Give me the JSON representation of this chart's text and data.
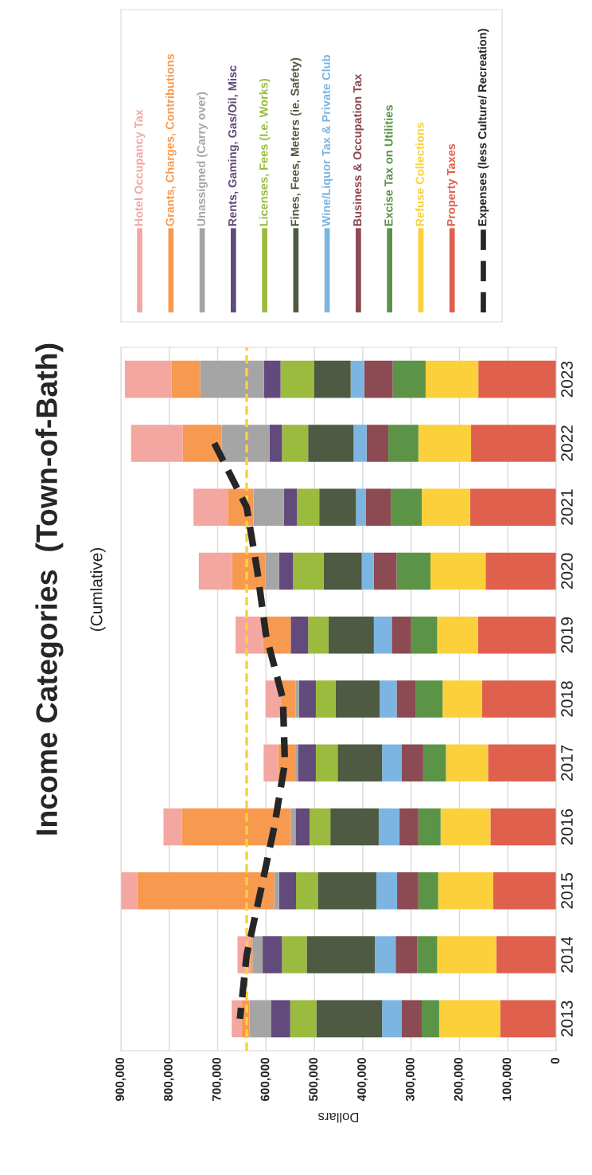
{
  "chart_data": {
    "type": "bar",
    "title": "Income Categories  (Town-of-Bath)",
    "subtitle": "(Cumlative)",
    "xlabel": "Dollars",
    "orientation": "horizontal",
    "stacked": true,
    "legend": "top",
    "grid": "x",
    "categories": [
      "2023",
      "2022",
      "2021",
      "2020",
      "2019",
      "2018",
      "2017",
      "2016",
      "2015",
      "2014",
      "2013"
    ],
    "xlim": [
      900000,
      0
    ],
    "xticks": [
      {
        "value": 0,
        "label": "0"
      },
      {
        "value": 100000,
        "label": "100,000"
      },
      {
        "value": 200000,
        "label": "200,000"
      },
      {
        "value": 300000,
        "label": "300,000"
      },
      {
        "value": 400000,
        "label": "400,000"
      },
      {
        "value": 500000,
        "label": "500,000"
      },
      {
        "value": 600000,
        "label": "600,000"
      },
      {
        "value": 700000,
        "label": "700,000"
      },
      {
        "value": 800000,
        "label": "800,000"
      },
      {
        "value": 900000,
        "label": "900,000"
      }
    ],
    "ref_lines": [
      {
        "axis": "x",
        "value": 640000,
        "label": null,
        "color": "#fcd03b",
        "line_style": "dashed"
      }
    ],
    "series": [
      {
        "name": "Property Taxes",
        "color": "#e0604e",
        "values": [
          161000,
          176000,
          178000,
          146000,
          162000,
          153000,
          141000,
          136000,
          130000,
          124000,
          116000
        ]
      },
      {
        "name": "Refuse Collections",
        "color": "#fcd03b",
        "values": [
          109000,
          109000,
          100000,
          114000,
          84000,
          82000,
          87000,
          103000,
          114000,
          122000,
          126000
        ]
      },
      {
        "name": "Excise Tax on Utilities",
        "color": "#5b9446",
        "values": [
          68000,
          62000,
          64000,
          70000,
          54000,
          55000,
          47000,
          46000,
          41000,
          41000,
          36000
        ]
      },
      {
        "name": "Business & Occupation Tax",
        "color": "#8c4a52",
        "values": [
          59000,
          45000,
          52000,
          47000,
          40000,
          40000,
          45000,
          39000,
          44000,
          45000,
          42000
        ]
      },
      {
        "name": "Wine/Liquor Tax & Private Club",
        "color": "#7cb5e2",
        "values": [
          28000,
          27000,
          20000,
          25000,
          37000,
          35000,
          40000,
          43000,
          43000,
          43000,
          40000
        ]
      },
      {
        "name": "Fines, Fees, Meters (ie. Safety)",
        "color": "#4f5a42",
        "values": [
          76000,
          94000,
          76000,
          79000,
          94000,
          91000,
          92000,
          100000,
          121000,
          141000,
          136000
        ]
      },
      {
        "name": "Licenses, Fees (I.e. Works)",
        "color": "#9bbb3f",
        "values": [
          69000,
          54000,
          46000,
          63000,
          42000,
          41000,
          45000,
          43000,
          45000,
          51000,
          54000
        ]
      },
      {
        "name": "Rents, Gaming, Gas/Oil, Misc",
        "color": "#624a7c",
        "values": [
          34000,
          26000,
          27000,
          29000,
          36000,
          35000,
          37000,
          29000,
          35000,
          40000,
          40000
        ]
      },
      {
        "name": "Unassigned (Carry over)",
        "color": "#a5a5a5",
        "values": [
          132000,
          99000,
          63000,
          28000,
          0,
          7000,
          4000,
          10000,
          10000,
          21000,
          44000
        ]
      },
      {
        "name": "Grants, Charges, Contributions",
        "color": "#f79a50",
        "values": [
          59000,
          80000,
          53000,
          69000,
          57000,
          30000,
          37000,
          225000,
          283000,
          5000,
          16000
        ]
      },
      {
        "name": "Hotel Occupancy Tax",
        "color": "#f4a6a0",
        "values": [
          97000,
          107000,
          71000,
          69000,
          57000,
          32000,
          30000,
          38000,
          34000,
          26000,
          21000
        ]
      },
      {
        "name": "Expenses (less Culture/ Recreation)",
        "type": "line",
        "line_style": "dashed",
        "color": "#262626",
        "values": [
          null,
          707000,
          640000,
          618000,
          600000,
          565000,
          561000,
          583000,
          611000,
          640000,
          654000
        ]
      }
    ]
  }
}
